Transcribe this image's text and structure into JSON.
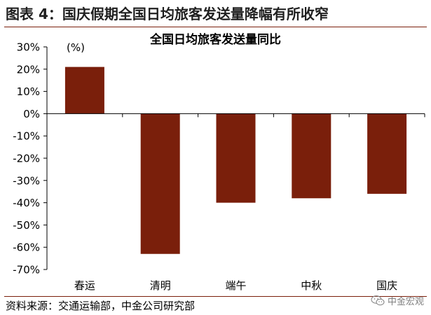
{
  "header": {
    "figure_title": "图表 4：国庆假期全国日均旅客发送量降幅有所收窄"
  },
  "chart_data": {
    "type": "bar",
    "title": "全国日均旅客发送量同比",
    "unit_label": "(%)",
    "categories": [
      "春运",
      "清明",
      "端午",
      "中秋",
      "国庆"
    ],
    "values": [
      21,
      -63,
      -40,
      -38,
      -36
    ],
    "yticks": [
      "30%",
      "20%",
      "10%",
      "0%",
      "-10%",
      "-20%",
      "-30%",
      "-40%",
      "-50%",
      "-60%",
      "-70%"
    ],
    "ylim": [
      -70,
      30
    ],
    "bar_color": "#7a1f0b",
    "grid": false
  },
  "footer": {
    "source": "资料来源：交通运输部，中金公司研究部",
    "watermark": "中金宏观",
    "watermark_icon": "wechat-icon"
  }
}
